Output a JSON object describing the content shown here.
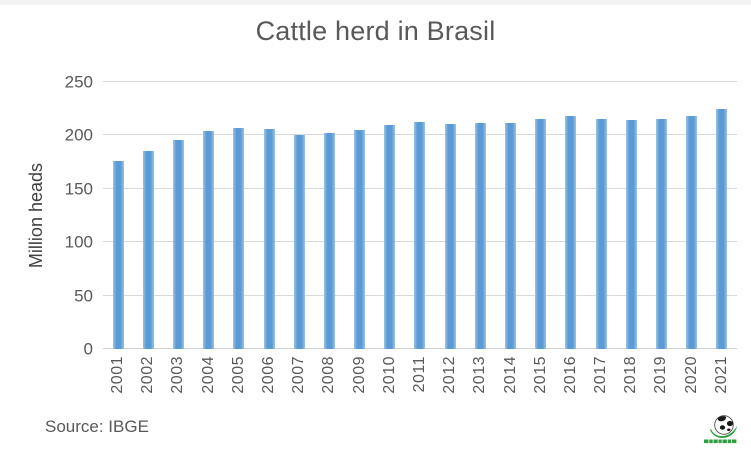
{
  "chart_data": {
    "type": "bar",
    "title": "Cattle herd in Brasil",
    "ylabel": "Million heads",
    "xlabel": "",
    "source": "Source: IBGE",
    "categories": [
      "2001",
      "2002",
      "2003",
      "2004",
      "2005",
      "2006",
      "2007",
      "2008",
      "2009",
      "2010",
      "2011",
      "2012",
      "2013",
      "2014",
      "2015",
      "2016",
      "2017",
      "2018",
      "2019",
      "2020",
      "2021"
    ],
    "values": [
      176,
      185,
      196,
      204,
      207,
      206,
      200,
      202,
      205,
      210,
      213,
      211,
      212,
      212,
      215,
      218,
      215,
      214,
      215,
      218,
      225
    ],
    "yticks": [
      0,
      50,
      100,
      150,
      200,
      250
    ],
    "ylim": [
      0,
      250
    ],
    "grid": true,
    "legend_position": "none",
    "colors": {
      "bar": "#5B9BD5",
      "bar_edge": "#9DC3E6",
      "gridline": "#D9D9D9",
      "axis_line": "#D2D2D2",
      "text": "#595959",
      "logo_green": "#2E9E3E",
      "logo_dark": "#1A1A1A"
    }
  }
}
